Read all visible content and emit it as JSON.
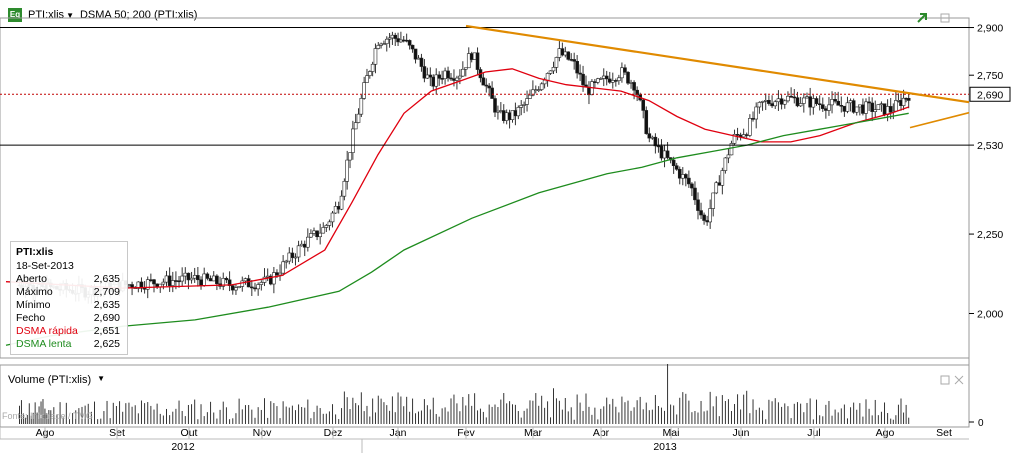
{
  "toolbar": {
    "icon_label": "Eq",
    "symbol": "PTI:xlis",
    "indicator": "DSMA 50; 200 (PTI:xlis)"
  },
  "volume_pane": {
    "title": "Volume (PTI:xlis)"
  },
  "watermark": "Fonte: Infotrade / TMG",
  "info_box": {
    "title": "PTI:xlis",
    "date": "18-Set-2013",
    "rows": [
      {
        "label": "Aberto",
        "value": "2,635"
      },
      {
        "label": "Máximo",
        "value": "2,709"
      },
      {
        "label": "Mínimo",
        "value": "2,635"
      },
      {
        "label": "Fecho",
        "value": "2,690"
      },
      {
        "label": "DSMA rápida",
        "value": "2,651",
        "color": "#e0000f"
      },
      {
        "label": "DSMA lenta",
        "value": "2,625",
        "color": "#1e8c1e"
      }
    ]
  },
  "chart_data": {
    "type": "candlestick",
    "y_ticks": [
      "2,900",
      "2,750",
      "2,530",
      "2,250",
      "2,000"
    ],
    "y_ticks_values": [
      2.9,
      2.75,
      2.53,
      2.25,
      2.0
    ],
    "ylim": [
      1.86,
      2.93
    ],
    "highlight_labels": [
      "2,690"
    ],
    "x_month_labels": [
      "Ago",
      "Set",
      "Out",
      "Nov",
      "Dez",
      "Jan",
      "Fev",
      "Mar",
      "Abr",
      "Mai",
      "Jun",
      "Jul",
      "Ago",
      "Set"
    ],
    "year_labels": [
      "2012",
      "2013"
    ],
    "horizontal_lines": [
      2.9,
      2.53
    ],
    "dotted_line": 2.69,
    "trendline_resistance": {
      "from": {
        "month": "Jan/Fev",
        "value": 2.91
      },
      "to": {
        "month": "Set",
        "value": 2.66
      }
    },
    "trendline_support": {
      "from": {
        "month": "Set",
        "value": 2.58
      },
      "to": {
        "month": "Set",
        "value": 2.63
      }
    },
    "series": [
      {
        "name": "DSMA rápida",
        "color": "#e0000f"
      },
      {
        "name": "DSMA lenta",
        "color": "#1e8c1e"
      }
    ],
    "price_path": [
      [
        0.0,
        2.0
      ],
      [
        0.3,
        2.09
      ],
      [
        1.0,
        2.08
      ],
      [
        1.5,
        2.07
      ],
      [
        2.0,
        2.09
      ],
      [
        2.5,
        2.1
      ],
      [
        3.0,
        2.11
      ],
      [
        3.5,
        2.09
      ],
      [
        4.0,
        2.1
      ],
      [
        4.5,
        2.22
      ],
      [
        4.8,
        2.27
      ],
      [
        5.0,
        2.35
      ],
      [
        5.2,
        2.55
      ],
      [
        5.4,
        2.72
      ],
      [
        5.6,
        2.86
      ],
      [
        5.8,
        2.87
      ],
      [
        6.0,
        2.86
      ],
      [
        6.2,
        2.8
      ],
      [
        6.4,
        2.72
      ],
      [
        6.6,
        2.76
      ],
      [
        6.8,
        2.75
      ],
      [
        7.0,
        2.82
      ],
      [
        7.2,
        2.72
      ],
      [
        7.4,
        2.62
      ],
      [
        7.6,
        2.62
      ],
      [
        7.8,
        2.66
      ],
      [
        8.0,
        2.72
      ],
      [
        8.3,
        2.82
      ],
      [
        8.5,
        2.79
      ],
      [
        8.7,
        2.7
      ],
      [
        9.0,
        2.74
      ],
      [
        9.2,
        2.76
      ],
      [
        9.4,
        2.72
      ],
      [
        9.6,
        2.55
      ],
      [
        9.8,
        2.5
      ],
      [
        10.0,
        2.45
      ],
      [
        10.2,
        2.4
      ],
      [
        10.4,
        2.28
      ],
      [
        10.6,
        2.42
      ],
      [
        10.8,
        2.55
      ],
      [
        11.0,
        2.58
      ],
      [
        11.2,
        2.66
      ],
      [
        11.5,
        2.68
      ],
      [
        12.0,
        2.66
      ],
      [
        12.5,
        2.65
      ],
      [
        13.0,
        2.64
      ],
      [
        13.3,
        2.69
      ]
    ],
    "dsma_fast": [
      [
        0.0,
        2.1
      ],
      [
        2.0,
        2.08
      ],
      [
        3.5,
        2.09
      ],
      [
        4.2,
        2.12
      ],
      [
        4.8,
        2.2
      ],
      [
        5.2,
        2.35
      ],
      [
        5.6,
        2.5
      ],
      [
        6.0,
        2.63
      ],
      [
        6.4,
        2.7
      ],
      [
        6.8,
        2.73
      ],
      [
        7.2,
        2.76
      ],
      [
        7.6,
        2.77
      ],
      [
        8.0,
        2.74
      ],
      [
        8.4,
        2.72
      ],
      [
        8.8,
        2.71
      ],
      [
        9.2,
        2.7
      ],
      [
        9.6,
        2.67
      ],
      [
        10.0,
        2.62
      ],
      [
        10.4,
        2.58
      ],
      [
        10.8,
        2.56
      ],
      [
        11.2,
        2.54
      ],
      [
        11.6,
        2.54
      ],
      [
        12.0,
        2.56
      ],
      [
        12.5,
        2.6
      ],
      [
        13.0,
        2.63
      ],
      [
        13.3,
        2.65
      ]
    ],
    "dsma_slow": [
      [
        0.0,
        1.9
      ],
      [
        1.0,
        1.93
      ],
      [
        2.0,
        1.96
      ],
      [
        3.0,
        1.98
      ],
      [
        4.0,
        2.02
      ],
      [
        5.0,
        2.07
      ],
      [
        5.5,
        2.13
      ],
      [
        6.0,
        2.2
      ],
      [
        7.0,
        2.3
      ],
      [
        8.0,
        2.38
      ],
      [
        9.0,
        2.44
      ],
      [
        9.5,
        2.46
      ],
      [
        10.0,
        2.49
      ],
      [
        10.5,
        2.51
      ],
      [
        11.0,
        2.53
      ],
      [
        11.5,
        2.56
      ],
      [
        12.0,
        2.58
      ],
      [
        12.5,
        2.6
      ],
      [
        13.0,
        2.62
      ],
      [
        13.3,
        2.63
      ]
    ]
  },
  "colors": {
    "up": "#2c8a2c",
    "down": "#5a5a5a",
    "fast": "#e0000f",
    "slow": "#1e8c1e",
    "trend": "#e08a00",
    "grid_line": "#000000",
    "dotted": "#c00000"
  }
}
